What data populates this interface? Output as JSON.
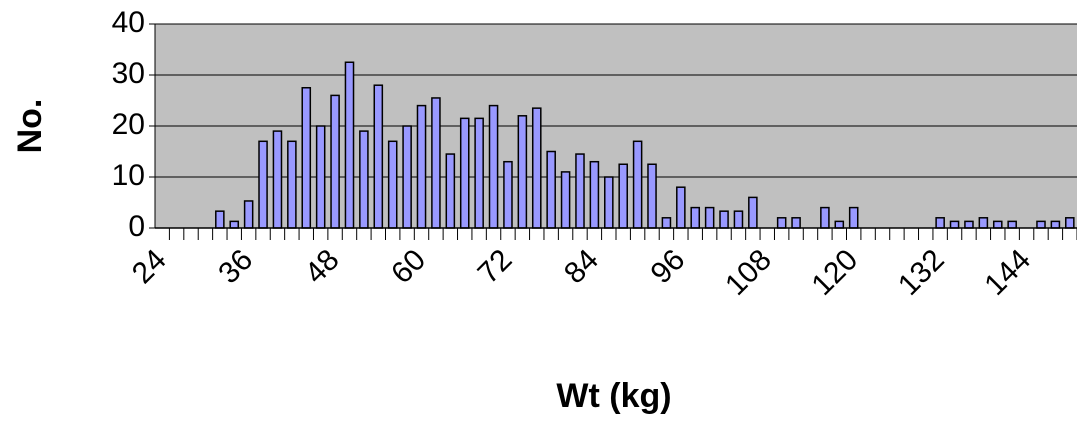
{
  "chart_data": {
    "type": "bar",
    "x_label": "Wt (kg)",
    "y_label": "No.",
    "categories": [
      "24",
      null,
      null,
      null,
      null,
      null,
      "36",
      null,
      null,
      null,
      null,
      null,
      "48",
      null,
      null,
      null,
      null,
      null,
      "60",
      null,
      null,
      null,
      null,
      null,
      "72",
      null,
      null,
      null,
      null,
      null,
      "84",
      null,
      null,
      null,
      null,
      null,
      "96",
      null,
      null,
      null,
      null,
      null,
      "108",
      null,
      null,
      null,
      null,
      null,
      "120",
      null,
      null,
      null,
      null,
      null,
      "132",
      null,
      null,
      null,
      null,
      null,
      "144",
      null,
      null,
      null
    ],
    "values": [
      0,
      0,
      0,
      0,
      3.3,
      1.3,
      5.3,
      17,
      19,
      17,
      27.5,
      20,
      26,
      32.5,
      19,
      28,
      17,
      20,
      24,
      25.5,
      14.5,
      21.5,
      21.5,
      24,
      13,
      22,
      23.5,
      15,
      11,
      14.5,
      13,
      10,
      12.5,
      17,
      12.5,
      2,
      8,
      4,
      4,
      3.3,
      3.3,
      6,
      0,
      2,
      2,
      0,
      4,
      1.3,
      4,
      0,
      0,
      0,
      0,
      0,
      2,
      1.3,
      1.3,
      2,
      1.3,
      1.3,
      0,
      1.3,
      1.3,
      2
    ],
    "color": "#9999ff",
    "ylim": [
      0,
      40
    ],
    "yticks": [
      0,
      10,
      20,
      30,
      40
    ],
    "grid": true
  }
}
